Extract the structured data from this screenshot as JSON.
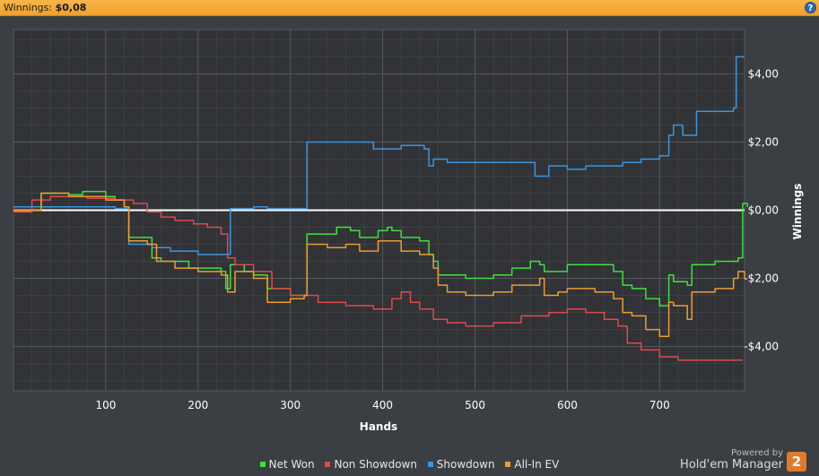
{
  "header": {
    "label": "Winnings:",
    "value": "$0,08",
    "help_glyph": "?"
  },
  "chart_data": {
    "type": "line",
    "xlabel": "Hands",
    "ylabel": "Winnings",
    "xlim": [
      0,
      792
    ],
    "ylim": [
      -5.3,
      5.3
    ],
    "x_ticks": [
      100,
      200,
      300,
      400,
      500,
      600,
      700
    ],
    "y_ticks": [
      {
        "v": 4,
        "label": "$4,00"
      },
      {
        "v": 2,
        "label": "$2,00"
      },
      {
        "v": 0,
        "label": "$0,00"
      },
      {
        "v": -2,
        "label": "-$2,00"
      },
      {
        "v": -4,
        "label": "-$4,00"
      }
    ],
    "grid": true,
    "legend_position": "bottom",
    "series": [
      {
        "name": "Net Won",
        "color": "#3ee03e",
        "points": [
          [
            0,
            0.1
          ],
          [
            30,
            0.5
          ],
          [
            60,
            0.45
          ],
          [
            75,
            0.55
          ],
          [
            100,
            0.4
          ],
          [
            110,
            0.3
          ],
          [
            120,
            0.1
          ],
          [
            125,
            -0.8
          ],
          [
            140,
            -0.8
          ],
          [
            150,
            -1.4
          ],
          [
            160,
            -1.5
          ],
          [
            175,
            -1.5
          ],
          [
            190,
            -1.7
          ],
          [
            210,
            -1.7
          ],
          [
            225,
            -1.8
          ],
          [
            230,
            -2.3
          ],
          [
            235,
            -1.6
          ],
          [
            250,
            -1.8
          ],
          [
            260,
            -1.9
          ],
          [
            270,
            -1.9
          ],
          [
            275,
            -2.3
          ],
          [
            300,
            -2.5
          ],
          [
            315,
            -2.5
          ],
          [
            318,
            -0.7
          ],
          [
            330,
            -0.7
          ],
          [
            345,
            -0.7
          ],
          [
            350,
            -0.5
          ],
          [
            365,
            -0.6
          ],
          [
            375,
            -0.8
          ],
          [
            395,
            -0.6
          ],
          [
            405,
            -0.5
          ],
          [
            410,
            -0.6
          ],
          [
            420,
            -0.8
          ],
          [
            435,
            -0.8
          ],
          [
            440,
            -0.9
          ],
          [
            450,
            -1.3
          ],
          [
            455,
            -1.5
          ],
          [
            460,
            -1.9
          ],
          [
            470,
            -1.9
          ],
          [
            490,
            -2.0
          ],
          [
            520,
            -1.9
          ],
          [
            540,
            -1.7
          ],
          [
            560,
            -1.5
          ],
          [
            570,
            -1.6
          ],
          [
            575,
            -1.8
          ],
          [
            590,
            -1.8
          ],
          [
            600,
            -1.6
          ],
          [
            630,
            -1.6
          ],
          [
            650,
            -1.8
          ],
          [
            660,
            -2.2
          ],
          [
            670,
            -2.3
          ],
          [
            685,
            -2.6
          ],
          [
            700,
            -2.8
          ],
          [
            710,
            -1.9
          ],
          [
            715,
            -2.1
          ],
          [
            730,
            -2.2
          ],
          [
            735,
            -1.6
          ],
          [
            760,
            -1.5
          ],
          [
            785,
            -1.4
          ],
          [
            790,
            0.2
          ],
          [
            795,
            0.1
          ]
        ]
      },
      {
        "name": "Non Showdown",
        "color": "#e04a4a",
        "points": [
          [
            0,
            -0.05
          ],
          [
            20,
            0.3
          ],
          [
            40,
            0.4
          ],
          [
            80,
            0.35
          ],
          [
            110,
            0.3
          ],
          [
            130,
            0.2
          ],
          [
            145,
            -0.05
          ],
          [
            160,
            -0.2
          ],
          [
            175,
            -0.3
          ],
          [
            195,
            -0.4
          ],
          [
            210,
            -0.5
          ],
          [
            225,
            -0.7
          ],
          [
            232,
            -1.4
          ],
          [
            240,
            -1.6
          ],
          [
            260,
            -1.8
          ],
          [
            280,
            -2.3
          ],
          [
            300,
            -2.5
          ],
          [
            330,
            -2.7
          ],
          [
            360,
            -2.8
          ],
          [
            390,
            -2.9
          ],
          [
            410,
            -2.6
          ],
          [
            420,
            -2.4
          ],
          [
            430,
            -2.7
          ],
          [
            440,
            -2.9
          ],
          [
            455,
            -3.2
          ],
          [
            470,
            -3.3
          ],
          [
            490,
            -3.4
          ],
          [
            520,
            -3.3
          ],
          [
            550,
            -3.1
          ],
          [
            580,
            -3.0
          ],
          [
            600,
            -2.9
          ],
          [
            620,
            -3.0
          ],
          [
            640,
            -3.2
          ],
          [
            655,
            -3.4
          ],
          [
            665,
            -3.9
          ],
          [
            680,
            -4.1
          ],
          [
            700,
            -4.3
          ],
          [
            720,
            -4.4
          ],
          [
            760,
            -4.4
          ],
          [
            790,
            -4.4
          ]
        ]
      },
      {
        "name": "Showdown",
        "color": "#3a96e0",
        "points": [
          [
            0,
            0.1
          ],
          [
            80,
            0.1
          ],
          [
            110,
            0.05
          ],
          [
            120,
            0.05
          ],
          [
            125,
            -1.0
          ],
          [
            150,
            -1.1
          ],
          [
            170,
            -1.2
          ],
          [
            200,
            -1.3
          ],
          [
            230,
            -1.3
          ],
          [
            235,
            0.05
          ],
          [
            260,
            0.1
          ],
          [
            275,
            0.05
          ],
          [
            300,
            0.05
          ],
          [
            316,
            0.05
          ],
          [
            318,
            2.0
          ],
          [
            370,
            2.0
          ],
          [
            390,
            1.8
          ],
          [
            420,
            1.9
          ],
          [
            445,
            1.8
          ],
          [
            450,
            1.3
          ],
          [
            455,
            1.5
          ],
          [
            470,
            1.4
          ],
          [
            520,
            1.4
          ],
          [
            560,
            1.4
          ],
          [
            565,
            1.0
          ],
          [
            580,
            1.3
          ],
          [
            600,
            1.2
          ],
          [
            620,
            1.3
          ],
          [
            660,
            1.4
          ],
          [
            680,
            1.5
          ],
          [
            700,
            1.6
          ],
          [
            710,
            2.2
          ],
          [
            715,
            2.5
          ],
          [
            725,
            2.2
          ],
          [
            735,
            2.2
          ],
          [
            740,
            2.9
          ],
          [
            770,
            2.9
          ],
          [
            780,
            3.0
          ],
          [
            783,
            4.5
          ],
          [
            792,
            4.5
          ]
        ]
      },
      {
        "name": "All-In EV",
        "color": "#f09a30",
        "points": [
          [
            0,
            0.0
          ],
          [
            30,
            0.5
          ],
          [
            60,
            0.4
          ],
          [
            100,
            0.3
          ],
          [
            120,
            0.1
          ],
          [
            125,
            -0.9
          ],
          [
            145,
            -1.0
          ],
          [
            155,
            -1.5
          ],
          [
            175,
            -1.7
          ],
          [
            200,
            -1.8
          ],
          [
            225,
            -1.9
          ],
          [
            232,
            -2.4
          ],
          [
            240,
            -1.8
          ],
          [
            260,
            -2.0
          ],
          [
            275,
            -2.7
          ],
          [
            300,
            -2.6
          ],
          [
            315,
            -2.5
          ],
          [
            318,
            -1.0
          ],
          [
            340,
            -1.1
          ],
          [
            360,
            -1.0
          ],
          [
            375,
            -1.2
          ],
          [
            395,
            -0.9
          ],
          [
            410,
            -0.9
          ],
          [
            420,
            -1.2
          ],
          [
            440,
            -1.3
          ],
          [
            455,
            -1.7
          ],
          [
            460,
            -2.2
          ],
          [
            470,
            -2.4
          ],
          [
            490,
            -2.5
          ],
          [
            520,
            -2.4
          ],
          [
            540,
            -2.2
          ],
          [
            570,
            -2.0
          ],
          [
            575,
            -2.5
          ],
          [
            590,
            -2.4
          ],
          [
            600,
            -2.3
          ],
          [
            630,
            -2.4
          ],
          [
            650,
            -2.6
          ],
          [
            660,
            -3.0
          ],
          [
            670,
            -3.1
          ],
          [
            685,
            -3.5
          ],
          [
            700,
            -3.7
          ],
          [
            710,
            -2.7
          ],
          [
            715,
            -2.8
          ],
          [
            730,
            -3.2
          ],
          [
            735,
            -2.4
          ],
          [
            760,
            -2.3
          ],
          [
            780,
            -2.0
          ],
          [
            785,
            -1.8
          ],
          [
            792,
            -2.0
          ]
        ]
      }
    ]
  },
  "branding": {
    "powered_by": "Powered by",
    "product": "Hold'em Manager",
    "logo_text": "2"
  }
}
